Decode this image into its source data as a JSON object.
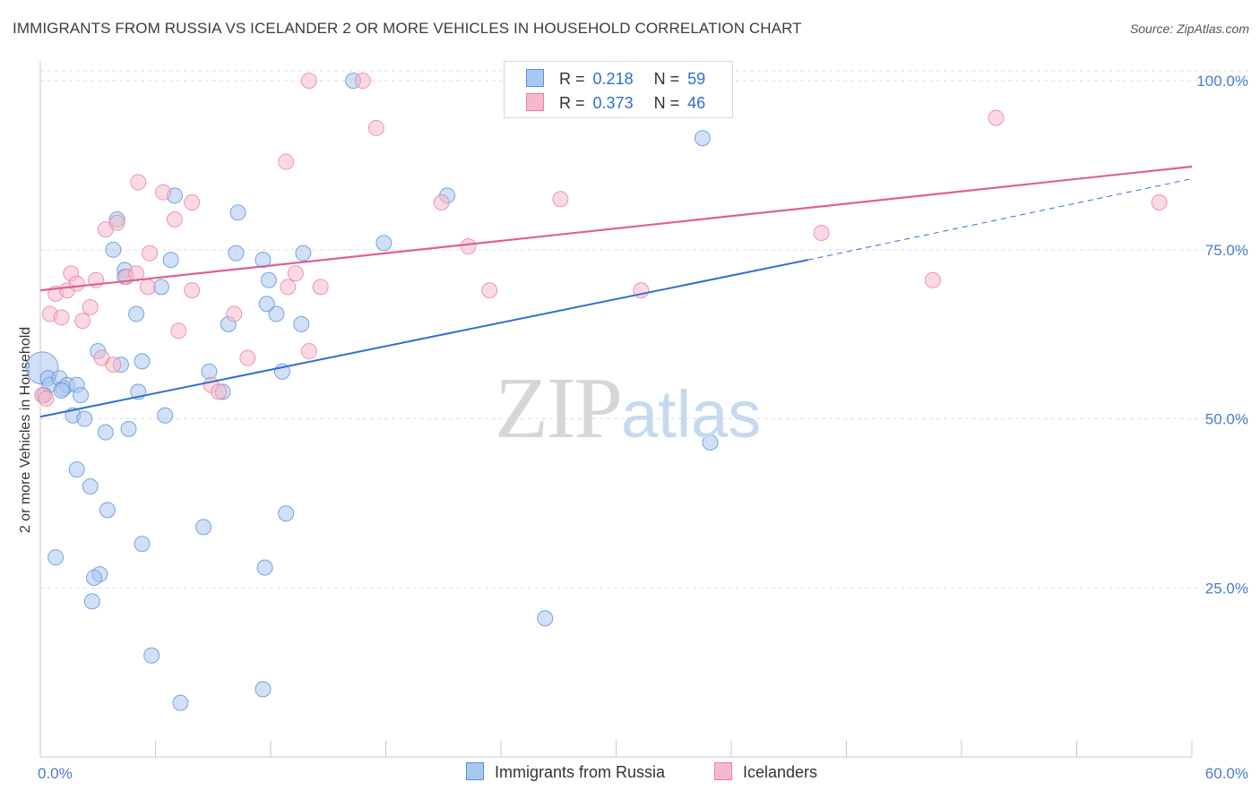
{
  "title": "IMMIGRANTS FROM RUSSIA VS ICELANDER 2 OR MORE VEHICLES IN HOUSEHOLD CORRELATION CHART",
  "source": "Source: ZipAtlas.com",
  "watermark": {
    "zip": "ZIP",
    "atlas": "atlas"
  },
  "legend": {
    "russia": {
      "r_label": "R =",
      "r_value": "0.218",
      "n_label": "N =",
      "n_value": "59"
    },
    "iceland": {
      "r_label": "R =",
      "r_value": "0.373",
      "n_label": "N =",
      "n_value": "46"
    }
  },
  "colors": {
    "russia_fill": "#a9c8f0",
    "russia_stroke": "#5b8fd8",
    "russia_line": "#2f6fcf",
    "iceland_fill": "#f6b9cc",
    "iceland_stroke": "#e97fa0",
    "iceland_line": "#e06090",
    "grid": "#dcdcdc",
    "tick_text": "#4a7cc9"
  },
  "chart_data": {
    "type": "scatter",
    "title": "IMMIGRANTS FROM RUSSIA VS ICELANDER 2 OR MORE VEHICLES IN HOUSEHOLD CORRELATION CHART",
    "xlabel": "",
    "ylabel": "2 or more Vehicles in Household",
    "xlim": [
      0,
      60
    ],
    "ylim": [
      0,
      102
    ],
    "x_tick_labels": [
      "0.0%",
      "60.0%"
    ],
    "y_ticks": [
      25,
      50,
      75,
      100
    ],
    "y_tick_labels": [
      "25.0%",
      "50.0%",
      "75.0%",
      "100.0%"
    ],
    "grid": true,
    "legend_position": "top-center",
    "series": [
      {
        "name": "Immigrants from Russia",
        "points": [
          [
            0.1,
            57.5
          ],
          [
            0.4,
            56
          ],
          [
            0.5,
            55
          ],
          [
            1.0,
            56
          ],
          [
            1.2,
            54.5
          ],
          [
            1.4,
            55
          ],
          [
            1.9,
            55
          ],
          [
            2.1,
            53.5
          ],
          [
            1.7,
            50.5
          ],
          [
            2.3,
            50
          ],
          [
            3.4,
            48
          ],
          [
            4.6,
            48.5
          ],
          [
            3.0,
            60
          ],
          [
            4.2,
            58
          ],
          [
            5.3,
            58.5
          ],
          [
            5.1,
            54
          ],
          [
            6.5,
            50.5
          ],
          [
            8.8,
            57
          ],
          [
            9.5,
            54
          ],
          [
            12.6,
            57
          ],
          [
            9.8,
            64
          ],
          [
            12.3,
            65.5
          ],
          [
            13.6,
            64
          ],
          [
            5.0,
            65.5
          ],
          [
            3.8,
            75
          ],
          [
            6.8,
            73.5
          ],
          [
            4.4,
            72
          ],
          [
            4.4,
            71
          ],
          [
            6.3,
            69.5
          ],
          [
            11.9,
            70.5
          ],
          [
            11.8,
            67
          ],
          [
            10.2,
            74.5
          ],
          [
            11.6,
            73.5
          ],
          [
            13.7,
            74.5
          ],
          [
            7.0,
            83
          ],
          [
            10.3,
            80.5
          ],
          [
            4.0,
            79.5
          ],
          [
            17.9,
            76
          ],
          [
            21.2,
            83
          ],
          [
            16.3,
            100
          ],
          [
            34.5,
            91.5
          ],
          [
            34.9,
            46.5
          ],
          [
            1.9,
            42.5
          ],
          [
            2.6,
            40
          ],
          [
            3.5,
            36.5
          ],
          [
            8.5,
            34
          ],
          [
            12.8,
            36
          ],
          [
            0.8,
            29.5
          ],
          [
            5.3,
            31.5
          ],
          [
            3.1,
            27
          ],
          [
            2.8,
            26.5
          ],
          [
            11.7,
            28
          ],
          [
            2.7,
            23
          ],
          [
            26.3,
            20.5
          ],
          [
            5.8,
            15
          ],
          [
            7.3,
            8
          ],
          [
            11.6,
            10
          ],
          [
            0.2,
            53.5
          ],
          [
            1.1,
            54.2
          ]
        ]
      },
      {
        "name": "Icelanders",
        "points": [
          [
            0.1,
            53.5
          ],
          [
            0.5,
            65.5
          ],
          [
            1.1,
            65
          ],
          [
            2.2,
            64.5
          ],
          [
            0.8,
            68.5
          ],
          [
            1.4,
            69
          ],
          [
            1.6,
            71.5
          ],
          [
            1.9,
            70
          ],
          [
            2.6,
            66.5
          ],
          [
            2.9,
            70.5
          ],
          [
            3.2,
            59
          ],
          [
            3.8,
            58
          ],
          [
            4.5,
            71
          ],
          [
            5.0,
            71.5
          ],
          [
            5.6,
            69.5
          ],
          [
            5.7,
            74.5
          ],
          [
            7.2,
            63
          ],
          [
            7.9,
            69
          ],
          [
            8.9,
            55
          ],
          [
            9.3,
            54
          ],
          [
            10.1,
            65.5
          ],
          [
            10.8,
            59
          ],
          [
            12.9,
            69.5
          ],
          [
            13.3,
            71.5
          ],
          [
            14.0,
            60
          ],
          [
            14.6,
            69.5
          ],
          [
            3.4,
            78
          ],
          [
            4.0,
            79
          ],
          [
            5.1,
            85
          ],
          [
            6.4,
            83.5
          ],
          [
            7.0,
            79.5
          ],
          [
            7.9,
            82
          ],
          [
            12.8,
            88
          ],
          [
            14.0,
            100
          ],
          [
            16.8,
            100
          ],
          [
            17.5,
            93
          ],
          [
            20.9,
            82
          ],
          [
            22.3,
            75.5
          ],
          [
            23.4,
            69
          ],
          [
            27.1,
            82.5
          ],
          [
            31.3,
            69
          ],
          [
            40.7,
            77.5
          ],
          [
            46.5,
            70.5
          ],
          [
            49.8,
            94.5
          ],
          [
            58.3,
            82
          ],
          [
            0.3,
            53
          ]
        ]
      }
    ],
    "trend_lines": [
      {
        "series": "Immigrants from Russia",
        "x": [
          0,
          40
        ],
        "y": [
          50.3,
          73.5
        ],
        "dashed_extension_to_x": 60,
        "dashed_extension_y": 85.5
      },
      {
        "series": "Icelanders",
        "x": [
          0,
          60
        ],
        "y": [
          69.0,
          87.3
        ]
      }
    ]
  }
}
